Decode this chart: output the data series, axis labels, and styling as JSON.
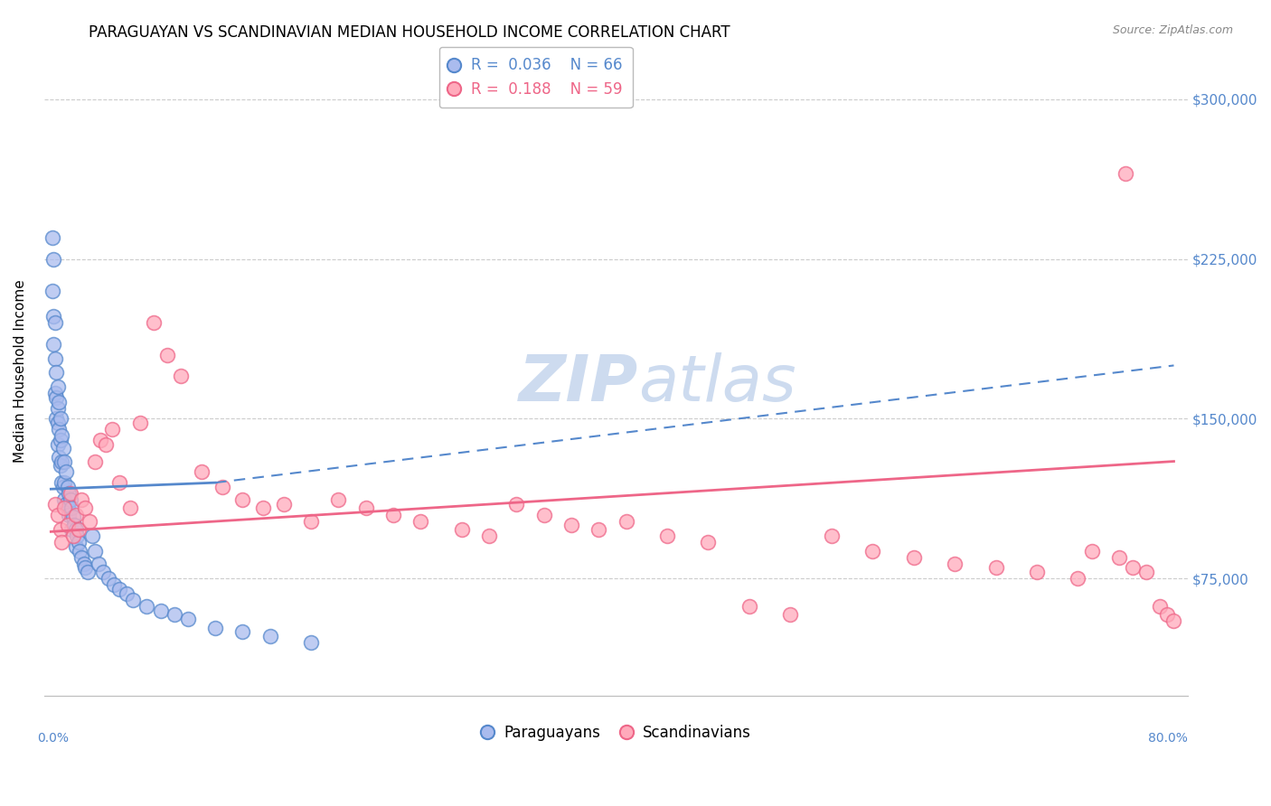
{
  "title": "PARAGUAYAN VS SCANDINAVIAN MEDIAN HOUSEHOLD INCOME CORRELATION CHART",
  "source": "Source: ZipAtlas.com",
  "ylabel": "Median Household Income",
  "ytick_labels": [
    "$75,000",
    "$150,000",
    "$225,000",
    "$300,000"
  ],
  "ytick_values": [
    75000,
    150000,
    225000,
    300000
  ],
  "ymin": 20000,
  "ymax": 325000,
  "xmin": -0.005,
  "xmax": 0.83,
  "legend_blue_r": "0.036",
  "legend_blue_n": "66",
  "legend_pink_r": "0.188",
  "legend_pink_n": "59",
  "blue_color": "#5588CC",
  "pink_color": "#EE6688",
  "blue_fill": "#AABBEE",
  "pink_fill": "#FFAABB",
  "watermark_color": "#C8D8EE",
  "para_x": [
    0.001,
    0.001,
    0.002,
    0.002,
    0.002,
    0.003,
    0.003,
    0.003,
    0.004,
    0.004,
    0.004,
    0.005,
    0.005,
    0.005,
    0.005,
    0.006,
    0.006,
    0.006,
    0.007,
    0.007,
    0.007,
    0.008,
    0.008,
    0.008,
    0.009,
    0.009,
    0.01,
    0.01,
    0.01,
    0.011,
    0.011,
    0.012,
    0.012,
    0.013,
    0.013,
    0.014,
    0.015,
    0.015,
    0.016,
    0.017,
    0.018,
    0.018,
    0.019,
    0.02,
    0.021,
    0.022,
    0.024,
    0.025,
    0.027,
    0.03,
    0.032,
    0.035,
    0.038,
    0.042,
    0.046,
    0.05,
    0.055,
    0.06,
    0.07,
    0.08,
    0.09,
    0.1,
    0.12,
    0.14,
    0.16,
    0.19
  ],
  "para_y": [
    235000,
    210000,
    225000,
    198000,
    185000,
    195000,
    178000,
    162000,
    172000,
    160000,
    150000,
    165000,
    155000,
    148000,
    138000,
    158000,
    145000,
    132000,
    150000,
    140000,
    128000,
    142000,
    130000,
    120000,
    136000,
    118000,
    130000,
    120000,
    112000,
    125000,
    110000,
    118000,
    108000,
    115000,
    105000,
    112000,
    108000,
    98000,
    104000,
    100000,
    98000,
    90000,
    95000,
    92000,
    88000,
    85000,
    82000,
    80000,
    78000,
    95000,
    88000,
    82000,
    78000,
    75000,
    72000,
    70000,
    68000,
    65000,
    62000,
    60000,
    58000,
    56000,
    52000,
    50000,
    48000,
    45000
  ],
  "scand_x": [
    0.003,
    0.005,
    0.007,
    0.008,
    0.01,
    0.012,
    0.014,
    0.016,
    0.018,
    0.02,
    0.022,
    0.025,
    0.028,
    0.032,
    0.036,
    0.04,
    0.045,
    0.05,
    0.058,
    0.065,
    0.075,
    0.085,
    0.095,
    0.11,
    0.125,
    0.14,
    0.155,
    0.17,
    0.19,
    0.21,
    0.23,
    0.25,
    0.27,
    0.3,
    0.32,
    0.34,
    0.36,
    0.38,
    0.4,
    0.42,
    0.45,
    0.48,
    0.51,
    0.54,
    0.57,
    0.6,
    0.63,
    0.66,
    0.69,
    0.72,
    0.75,
    0.76,
    0.78,
    0.79,
    0.8,
    0.81,
    0.815,
    0.82,
    0.785
  ],
  "scand_y": [
    110000,
    105000,
    98000,
    92000,
    108000,
    100000,
    115000,
    95000,
    105000,
    98000,
    112000,
    108000,
    102000,
    130000,
    140000,
    138000,
    145000,
    120000,
    108000,
    148000,
    195000,
    180000,
    170000,
    125000,
    118000,
    112000,
    108000,
    110000,
    102000,
    112000,
    108000,
    105000,
    102000,
    98000,
    95000,
    110000,
    105000,
    100000,
    98000,
    102000,
    95000,
    92000,
    62000,
    58000,
    95000,
    88000,
    85000,
    82000,
    80000,
    78000,
    75000,
    88000,
    85000,
    80000,
    78000,
    62000,
    58000,
    55000,
    265000
  ],
  "blue_trendline_x": [
    0.0,
    0.12
  ],
  "blue_trendline_y": [
    117000,
    120000
  ],
  "blue_dashline_x": [
    0.12,
    0.82
  ],
  "blue_dashline_y": [
    120000,
    175000
  ],
  "pink_trendline_x": [
    0.0,
    0.82
  ],
  "pink_trendline_y": [
    97000,
    130000
  ]
}
